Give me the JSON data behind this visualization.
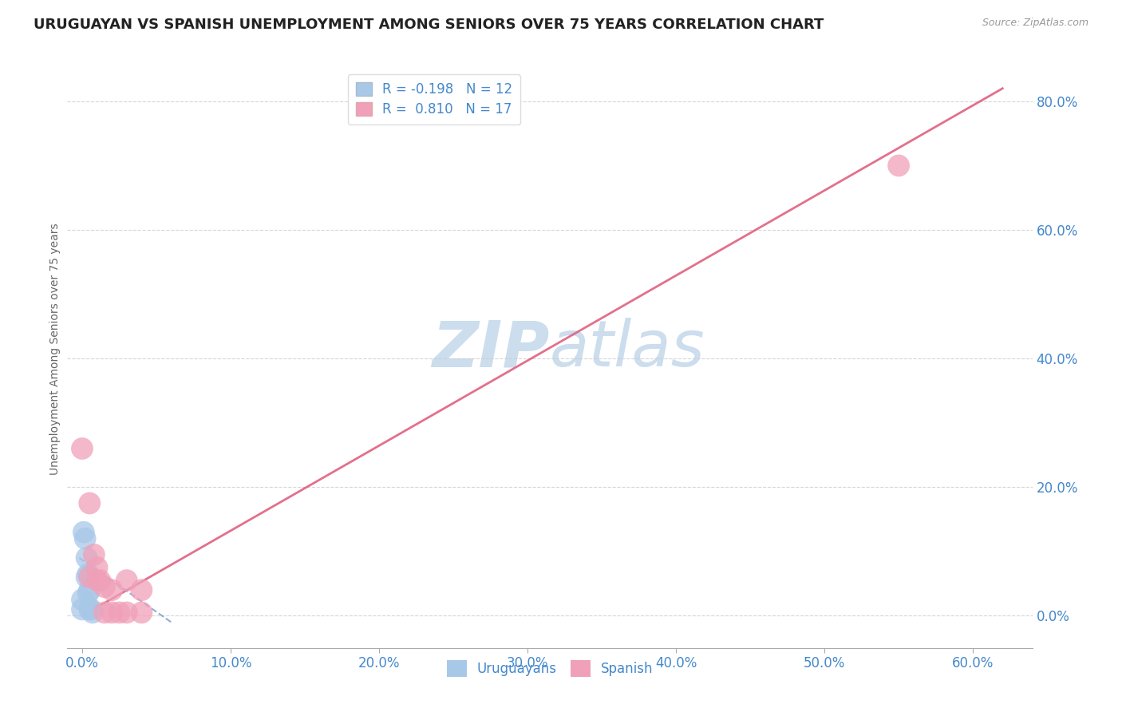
{
  "title": "URUGUAYAN VS SPANISH UNEMPLOYMENT AMONG SENIORS OVER 75 YEARS CORRELATION CHART",
  "source": "Source: ZipAtlas.com",
  "ylabel": "Unemployment Among Seniors over 75 years",
  "x_ticks": [
    0.0,
    0.1,
    0.2,
    0.3,
    0.4,
    0.5,
    0.6
  ],
  "y_ticks": [
    0.0,
    0.2,
    0.4,
    0.6,
    0.8
  ],
  "xlim": [
    -0.01,
    0.64
  ],
  "ylim": [
    -0.05,
    0.88
  ],
  "uruguayan_color": "#a8c8e8",
  "spanish_color": "#f0a0b8",
  "uruguayan_line_color": "#7799cc",
  "spanish_line_color": "#e06080",
  "tick_color": "#4488cc",
  "watermark_color": "#ccdded",
  "legend_r_uruguayan": "R = -0.198",
  "legend_n_uruguayan": "N = 12",
  "legend_r_spanish": "R =  0.810",
  "legend_n_spanish": "N = 17",
  "uruguayan_x": [
    0.0,
    0.0,
    0.001,
    0.002,
    0.003,
    0.003,
    0.004,
    0.004,
    0.005,
    0.005,
    0.006,
    0.007
  ],
  "uruguayan_y": [
    0.025,
    0.01,
    0.13,
    0.12,
    0.09,
    0.06,
    0.065,
    0.035,
    0.04,
    0.01,
    0.01,
    0.005
  ],
  "spanish_x": [
    0.0,
    0.005,
    0.005,
    0.008,
    0.01,
    0.01,
    0.012,
    0.015,
    0.015,
    0.02,
    0.02,
    0.025,
    0.03,
    0.03,
    0.04,
    0.04,
    0.55
  ],
  "spanish_y": [
    0.26,
    0.175,
    0.06,
    0.095,
    0.075,
    0.055,
    0.055,
    0.045,
    0.005,
    0.04,
    0.005,
    0.005,
    0.055,
    0.005,
    0.04,
    0.005,
    0.7
  ],
  "spanish_line_x0": 0.0,
  "spanish_line_y0": 0.0,
  "spanish_line_x1": 0.62,
  "spanish_line_y1": 0.82,
  "uruguayan_line_x0": -0.002,
  "uruguayan_line_y0": 0.09,
  "uruguayan_line_x1": 0.06,
  "uruguayan_line_y1": -0.01
}
